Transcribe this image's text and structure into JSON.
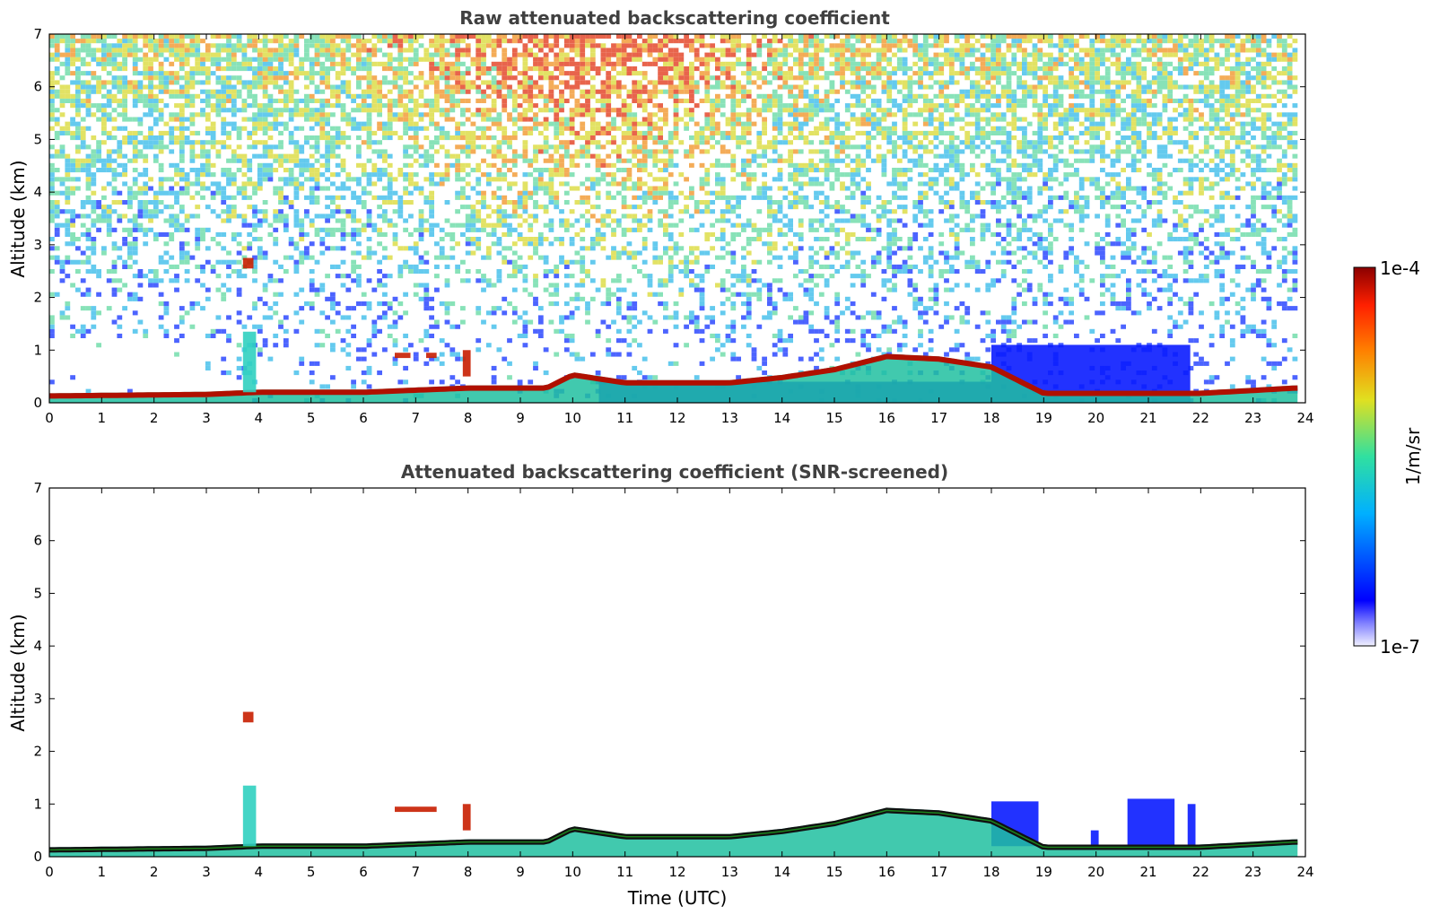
{
  "chart_data": [
    {
      "type": "heatmap",
      "title": "Raw attenuated backscattering coefficient",
      "xlabel": "",
      "ylabel": "Altitude (km)",
      "xlim": [
        0,
        24
      ],
      "ylim": [
        0,
        7
      ],
      "xticks": [
        0,
        1,
        2,
        3,
        4,
        5,
        6,
        7,
        8,
        9,
        10,
        11,
        12,
        13,
        14,
        15,
        16,
        17,
        18,
        19,
        20,
        21,
        22,
        23,
        24
      ],
      "yticks": [
        0,
        1,
        2,
        3,
        4,
        5,
        6,
        7
      ],
      "background_noise": "dense random noise, increasing with altitude; strongest (orange/red) around 9-12 UTC at 5-7 km",
      "boundary_layer_top_km": {
        "x": [
          0,
          3,
          4,
          6,
          8,
          9.5,
          10,
          11,
          13,
          14,
          15,
          16,
          17,
          18,
          19,
          22,
          23.8
        ],
        "y": [
          0.15,
          0.18,
          0.22,
          0.22,
          0.3,
          0.3,
          0.55,
          0.4,
          0.4,
          0.5,
          0.65,
          0.9,
          0.85,
          0.7,
          0.2,
          0.2,
          0.3
        ]
      },
      "cloud_features": [
        {
          "x": [
            3.7,
            3.9
          ],
          "y": [
            2.55,
            2.75
          ],
          "level": "high"
        },
        {
          "x": [
            3.7,
            3.95
          ],
          "y": [
            0.2,
            1.35
          ],
          "level": "medium"
        },
        {
          "x": [
            6.6,
            6.9
          ],
          "y": [
            0.85,
            0.95
          ],
          "level": "high"
        },
        {
          "x": [
            7.2,
            7.4
          ],
          "y": [
            0.85,
            0.95
          ],
          "level": "high"
        },
        {
          "x": [
            7.9,
            8.05
          ],
          "y": [
            0.5,
            1.0
          ],
          "level": "high"
        }
      ],
      "low_signal_regions": [
        {
          "x": [
            10.5,
            18
          ],
          "y": [
            0,
            0.4
          ],
          "level": "low"
        },
        {
          "x": [
            18,
            21.8
          ],
          "y": [
            0,
            1.1
          ],
          "level": "low"
        }
      ]
    },
    {
      "type": "heatmap",
      "title": "Attenuated backscattering coefficient (SNR-screened)",
      "xlabel": "Time (UTC)",
      "ylabel": "Altitude (km)",
      "xlim": [
        0,
        24
      ],
      "ylim": [
        0,
        7
      ],
      "xticks": [
        0,
        1,
        2,
        3,
        4,
        5,
        6,
        7,
        8,
        9,
        10,
        11,
        12,
        13,
        14,
        15,
        16,
        17,
        18,
        19,
        20,
        21,
        22,
        23,
        24
      ],
      "yticks": [
        0,
        1,
        2,
        3,
        4,
        5,
        6,
        7
      ],
      "boundary_layer_top_km": {
        "x": [
          0,
          3,
          4,
          6,
          8,
          9.5,
          10,
          11,
          13,
          14,
          15,
          16,
          17,
          18,
          19,
          22,
          23.8
        ],
        "y": [
          0.15,
          0.18,
          0.22,
          0.22,
          0.3,
          0.3,
          0.55,
          0.4,
          0.4,
          0.5,
          0.65,
          0.9,
          0.85,
          0.7,
          0.2,
          0.2,
          0.3
        ]
      },
      "cloud_features": [
        {
          "x": [
            3.7,
            3.9
          ],
          "y": [
            2.55,
            2.75
          ],
          "level": "high"
        },
        {
          "x": [
            3.7,
            3.95
          ],
          "y": [
            0.2,
            1.35
          ],
          "level": "medium"
        },
        {
          "x": [
            6.6,
            7.4
          ],
          "y": [
            0.85,
            0.95
          ],
          "level": "high"
        },
        {
          "x": [
            7.9,
            8.05
          ],
          "y": [
            0.5,
            1.0
          ],
          "level": "high"
        }
      ],
      "low_signal_regions": [
        {
          "x": [
            18,
            18.9
          ],
          "y": [
            0.2,
            1.05
          ],
          "level": "low"
        },
        {
          "x": [
            19.9,
            20.05
          ],
          "y": [
            0.2,
            0.5
          ],
          "level": "low"
        },
        {
          "x": [
            20.6,
            21.5
          ],
          "y": [
            0.2,
            1.1
          ],
          "level": "low"
        },
        {
          "x": [
            21.75,
            21.9
          ],
          "y": [
            0.2,
            1.0
          ],
          "level": "low"
        }
      ]
    }
  ],
  "colorbar": {
    "max_label": "1e-4",
    "min_label": "1e-7",
    "unit_label": "1/m/sr",
    "colormap": "jet",
    "colors": [
      "#f0f0ff",
      "#0000ff",
      "#00c0ff",
      "#30e0a0",
      "#e0e020",
      "#ff8000",
      "#ff2000",
      "#8b0000"
    ]
  }
}
